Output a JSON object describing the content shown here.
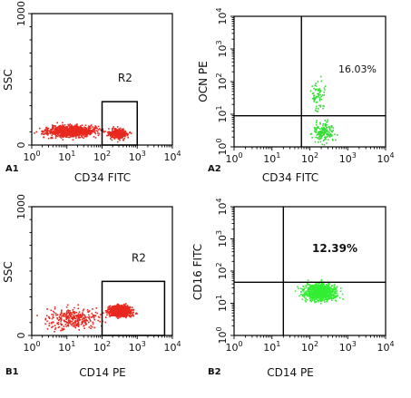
{
  "chart_data": [
    {
      "panel_label": "A1",
      "type": "scatter",
      "xlabel": "CD34 FITC",
      "ylabel": "SSC",
      "x_scale": "log",
      "xlim": [
        1,
        10000
      ],
      "x_ticks": [
        "10",
        "10",
        "10",
        "10",
        "10"
      ],
      "x_tick_exps": [
        "0",
        "1",
        "2",
        "3",
        "4"
      ],
      "ylim": [
        0,
        1000
      ],
      "y_ticks": [
        "0",
        "1000"
      ],
      "point_color": "#e8281e",
      "gate": {
        "label": "R2",
        "x_range": [
          100,
          1000
        ],
        "y_range": [
          0,
          330
        ]
      },
      "populations": [
        {
          "x_range_log": [
            0,
            2.2
          ],
          "y_range": [
            40,
            180
          ],
          "density": "high"
        },
        {
          "x_range_log": [
            2.0,
            2.9
          ],
          "y_range": [
            30,
            150
          ],
          "density": "low"
        }
      ]
    },
    {
      "panel_label": "A2",
      "type": "scatter",
      "xlabel": "CD34 FITC",
      "ylabel": "OCN PE",
      "x_scale": "log",
      "y_scale": "log",
      "xlim": [
        1,
        10000
      ],
      "ylim": [
        1,
        10000
      ],
      "x_ticks": [
        "10",
        "10",
        "10",
        "10",
        "10"
      ],
      "x_tick_exps": [
        "0",
        "1",
        "2",
        "3",
        "4"
      ],
      "y_ticks": [
        "10",
        "10",
        "10",
        "10",
        "10"
      ],
      "y_tick_exps": [
        "0",
        "1",
        "2",
        "3",
        "4"
      ],
      "point_color": "#33dd33",
      "quadrant": {
        "x": 60,
        "y": 9
      },
      "annotation": "16.03%",
      "populations": [
        {
          "x_range_log": [
            1.9,
            2.8
          ],
          "y_range_log": [
            0,
            0.95
          ],
          "density": "high"
        },
        {
          "x_range_log": [
            1.9,
            2.5
          ],
          "y_range_log": [
            0.95,
            2.2
          ],
          "density": "low"
        }
      ]
    },
    {
      "panel_label": "B1",
      "type": "scatter",
      "xlabel": "CD14 PE",
      "ylabel": "SSC",
      "x_scale": "log",
      "xlim": [
        1,
        10000
      ],
      "x_ticks": [
        "10",
        "10",
        "10",
        "10",
        "10"
      ],
      "x_tick_exps": [
        "0",
        "1",
        "2",
        "3",
        "4"
      ],
      "ylim": [
        0,
        1000
      ],
      "y_ticks": [
        "0",
        "1000"
      ],
      "point_color": "#e8281e",
      "gate": {
        "label": "R2",
        "x_range": [
          100,
          6000
        ],
        "y_range": [
          0,
          420
        ]
      },
      "populations": [
        {
          "x_range_log": [
            0,
            2.3
          ],
          "y_range": [
            10,
            260
          ],
          "density": "low"
        },
        {
          "x_range_log": [
            2.0,
            3.0
          ],
          "y_range": [
            130,
            260
          ],
          "density": "high"
        }
      ]
    },
    {
      "panel_label": "B2",
      "type": "scatter",
      "xlabel": "CD14 PE",
      "ylabel": "CD16 FITC",
      "x_scale": "log",
      "y_scale": "log",
      "xlim": [
        1,
        10000
      ],
      "ylim": [
        1,
        10000
      ],
      "x_ticks": [
        "10",
        "10",
        "10",
        "10",
        "10"
      ],
      "x_tick_exps": [
        "0",
        "1",
        "2",
        "3",
        "4"
      ],
      "y_ticks": [
        "10",
        "10",
        "10",
        "10",
        "10"
      ],
      "y_tick_exps": [
        "0",
        "1",
        "2",
        "3",
        "4"
      ],
      "point_color": "#33ee33",
      "quadrant": {
        "x": 20,
        "y": 45
      },
      "annotation": "12.39%",
      "populations": [
        {
          "x_range_log": [
            1.6,
            2.9
          ],
          "y_range_log": [
            1.0,
            1.75
          ],
          "density": "high"
        }
      ]
    }
  ]
}
